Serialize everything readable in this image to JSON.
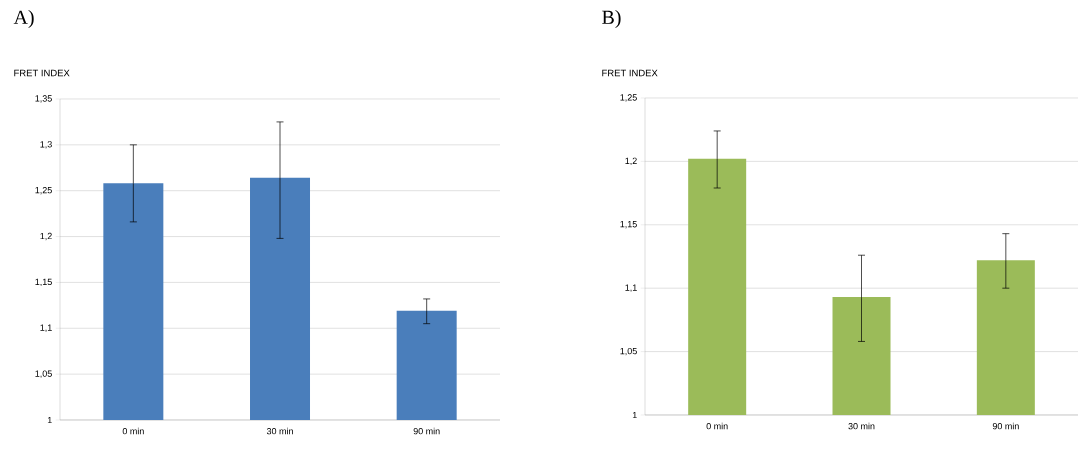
{
  "chart_data": [
    {
      "type": "bar",
      "title": "A)",
      "ylabel": "FRET INDEX",
      "categories": [
        "0 min",
        "30 min",
        "90 min"
      ],
      "values": [
        1.258,
        1.264,
        1.119
      ],
      "errors": [
        [
          1.216,
          1.3
        ],
        [
          1.198,
          1.325
        ],
        [
          1.105,
          1.132
        ]
      ],
      "color": "#4a7ebb",
      "ylim": [
        1,
        1.35
      ],
      "yticks": [
        1,
        {
          "value": 1.05,
          "label": "1,05"
        },
        {
          "value": 1.1,
          "label": "1,1"
        },
        {
          "value": 1.15,
          "label": "1,15"
        },
        {
          "value": 1.2,
          "label": "1,2"
        },
        {
          "value": 1.25,
          "label": "1,25"
        },
        {
          "value": 1.3,
          "label": "1,3"
        },
        {
          "value": 1.35,
          "label": "1,35"
        }
      ],
      "grid": "y"
    },
    {
      "type": "bar",
      "title": "B)",
      "ylabel": "FRET INDEX",
      "categories": [
        "0 min",
        "30 min",
        "90 min"
      ],
      "values": [
        1.202,
        1.093,
        1.122
      ],
      "errors": [
        [
          1.179,
          1.224
        ],
        [
          1.058,
          1.126
        ],
        [
          1.1,
          1.143
        ]
      ],
      "color": "#9bbb59",
      "ylim": [
        1,
        1.25
      ],
      "yticks": [
        1,
        {
          "value": 1.05,
          "label": "1,05"
        },
        {
          "value": 1.1,
          "label": "1,1"
        },
        {
          "value": 1.15,
          "label": "1,15"
        },
        {
          "value": 1.2,
          "label": "1,2"
        },
        {
          "value": 1.25,
          "label": "1,25"
        }
      ],
      "grid": "y"
    }
  ]
}
